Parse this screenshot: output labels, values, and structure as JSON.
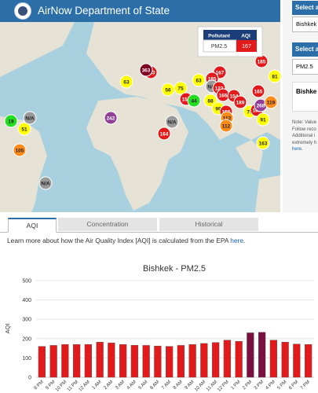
{
  "header": {
    "title": "AirNow Department of State"
  },
  "sidebar": {
    "select_city_label": "Select a",
    "city": "Bishkek",
    "select_pollutant_label": "Select a",
    "pollutant": "PM2.5",
    "panel_title": "Bishke",
    "note_lines": [
      "Note: Value",
      "Follow reco",
      "Additional i",
      "extremely h"
    ],
    "note_link": "here."
  },
  "map": {
    "popup": {
      "headers": [
        "Pollutant",
        "AQI"
      ],
      "pollutant": "PM2.5",
      "aqi": "167"
    },
    "markers": [
      {
        "label": "63",
        "color": "#ffff00"
      },
      {
        "label": "183",
        "color": "#e31a1c"
      },
      {
        "label": "363",
        "color": "#7e0023"
      },
      {
        "label": "56",
        "color": "#ffff00"
      },
      {
        "label": "75",
        "color": "#ffff00"
      },
      {
        "label": "152",
        "color": "#e31a1c"
      },
      {
        "label": "44",
        "color": "#22dd22"
      },
      {
        "label": "63",
        "color": "#ffff00"
      },
      {
        "label": "88",
        "color": "#ffff00"
      },
      {
        "label": "167",
        "color": "#e31a1c"
      },
      {
        "label": "185",
        "color": "#e31a1c"
      },
      {
        "label": "N/A",
        "color": "#999999"
      },
      {
        "label": "122",
        "color": "#e31a1c"
      },
      {
        "label": "166",
        "color": "#e31a1c"
      },
      {
        "label": "154",
        "color": "#e31a1c"
      },
      {
        "label": "189",
        "color": "#e31a1c"
      },
      {
        "label": "99",
        "color": "#ffff00"
      },
      {
        "label": "153",
        "color": "#e31a1c"
      },
      {
        "label": "112",
        "color": "#ff8c1a"
      },
      {
        "label": "112",
        "color": "#ff8c1a"
      },
      {
        "label": "79",
        "color": "#ffff00"
      },
      {
        "label": "169",
        "color": "#e31a1c"
      },
      {
        "label": "268",
        "color": "#8f3f97"
      },
      {
        "label": "119",
        "color": "#ff8c1a"
      },
      {
        "label": "165",
        "color": "#e31a1c"
      },
      {
        "label": "185",
        "color": "#e31a1c"
      },
      {
        "label": "81",
        "color": "#ffff00"
      },
      {
        "label": "91",
        "color": "#ffff00"
      },
      {
        "label": "163",
        "color": "#ffff00"
      },
      {
        "label": "19",
        "color": "#22dd22"
      },
      {
        "label": "51",
        "color": "#ffff00"
      },
      {
        "label": "N/A",
        "color": "#999999"
      },
      {
        "label": "105",
        "color": "#ff8c1a"
      },
      {
        "label": "N/A",
        "color": "#999999"
      },
      {
        "label": "242",
        "color": "#8f3f97"
      },
      {
        "label": "N/A",
        "color": "#999999"
      },
      {
        "label": "164",
        "color": "#e31a1c"
      }
    ]
  },
  "tabs": [
    "AQI",
    "Concentration",
    "Historical"
  ],
  "info": {
    "text": "Learn more about how the Air Quality Index [AQI] is calculated from the EPA ",
    "link": "here",
    "end": "."
  },
  "chart_data": {
    "type": "bar",
    "title": "Bishkek - PM2.5",
    "y_label": "AQI",
    "categories": [
      "8 PM",
      "9 PM",
      "10 PM",
      "11 PM",
      "12 AM",
      "1 AM",
      "2 AM",
      "3 AM",
      "4 AM",
      "5 AM",
      "6 AM",
      "7 AM",
      "8 AM",
      "9 AM",
      "10 AM",
      "11 AM",
      "12 PM",
      "1 PM",
      "2 PM",
      "3 PM",
      "4 PM",
      "5 PM",
      "6 PM",
      "7 PM"
    ],
    "values": [
      160,
      165,
      170,
      170,
      170,
      182,
      178,
      170,
      166,
      165,
      162,
      160,
      165,
      170,
      175,
      180,
      192,
      186,
      230,
      233,
      192,
      182,
      172,
      170
    ],
    "colors": [
      "#e31a1c",
      "#e31a1c",
      "#e31a1c",
      "#e31a1c",
      "#e31a1c",
      "#e31a1c",
      "#e31a1c",
      "#e31a1c",
      "#e31a1c",
      "#e31a1c",
      "#e31a1c",
      "#e31a1c",
      "#e31a1c",
      "#e31a1c",
      "#e31a1c",
      "#e31a1c",
      "#e31a1c",
      "#e31a1c",
      "#7b1040",
      "#7b1040",
      "#e31a1c",
      "#e31a1c",
      "#e31a1c",
      "#e31a1c"
    ],
    "ylim": [
      0,
      500
    ],
    "yticks": [
      0,
      100,
      200,
      300,
      400,
      500
    ],
    "grid": true
  }
}
